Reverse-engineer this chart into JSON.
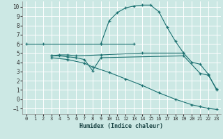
{
  "xlabel": "Humidex (Indice chaleur)",
  "background_color": "#cce8e4",
  "grid_color": "#ffffff",
  "line_color": "#1a7070",
  "xlim": [
    -0.5,
    23.5
  ],
  "ylim": [
    -1.6,
    10.6
  ],
  "xticks": [
    0,
    1,
    2,
    3,
    4,
    5,
    6,
    7,
    8,
    9,
    10,
    11,
    12,
    13,
    14,
    15,
    16,
    17,
    18,
    19,
    20,
    21,
    22,
    23
  ],
  "yticks": [
    -1,
    0,
    1,
    2,
    3,
    4,
    5,
    6,
    7,
    8,
    9,
    10
  ],
  "series": [
    {
      "x": [
        0,
        2,
        9,
        13
      ],
      "y": [
        6,
        6,
        6,
        6
      ]
    },
    {
      "x": [
        3,
        4,
        5,
        6,
        9,
        14,
        19
      ],
      "y": [
        4.7,
        4.8,
        4.8,
        4.7,
        4.8,
        5.0,
        5.0
      ]
    },
    {
      "x": [
        3,
        4,
        5,
        6,
        7,
        8,
        9,
        19,
        21,
        22,
        23
      ],
      "y": [
        4.7,
        4.7,
        4.6,
        4.5,
        4.3,
        3.1,
        4.5,
        4.7,
        2.8,
        2.6,
        1.1
      ]
    },
    {
      "x": [
        3,
        5,
        7,
        8,
        10,
        12,
        14,
        16,
        18,
        20,
        21,
        22,
        23
      ],
      "y": [
        4.5,
        4.3,
        3.9,
        3.5,
        2.9,
        2.2,
        1.5,
        0.7,
        0.0,
        -0.6,
        -0.8,
        -1.0,
        -1.1
      ]
    },
    {
      "x": [
        9,
        10,
        11,
        12,
        13,
        14,
        15,
        16,
        17,
        18,
        19,
        20,
        21,
        22,
        23
      ],
      "y": [
        6.0,
        8.5,
        9.4,
        9.9,
        10.1,
        10.2,
        10.2,
        9.5,
        7.8,
        6.3,
        5.0,
        4.0,
        3.8,
        2.7,
        1.0
      ]
    }
  ]
}
